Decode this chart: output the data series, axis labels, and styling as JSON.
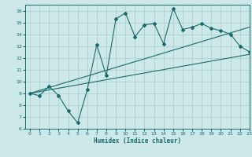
{
  "xlabel": "Humidex (Indice chaleur)",
  "ylabel": "",
  "xlim": [
    -0.5,
    23
  ],
  "ylim": [
    6,
    16.5
  ],
  "yticks": [
    6,
    7,
    8,
    9,
    10,
    11,
    12,
    13,
    14,
    15,
    16
  ],
  "xticks": [
    0,
    1,
    2,
    3,
    4,
    5,
    6,
    7,
    8,
    9,
    10,
    11,
    12,
    13,
    14,
    15,
    16,
    17,
    18,
    19,
    20,
    21,
    22,
    23
  ],
  "bg_color": "#cce8e8",
  "grid_color": "#aacccc",
  "line_color": "#1a6b6b",
  "main_x": [
    0,
    1,
    2,
    3,
    4,
    5,
    6,
    7,
    8,
    9,
    10,
    11,
    12,
    13,
    14,
    15,
    16,
    17,
    18,
    19,
    20,
    21,
    22,
    23
  ],
  "main_y": [
    9.0,
    8.8,
    9.6,
    8.8,
    7.5,
    6.5,
    9.3,
    13.1,
    10.5,
    15.3,
    15.8,
    13.8,
    14.8,
    14.9,
    13.2,
    16.2,
    14.4,
    14.6,
    14.9,
    14.5,
    14.3,
    14.0,
    13.0,
    12.5
  ],
  "line1_x": [
    0,
    23
  ],
  "line1_y": [
    9.0,
    12.3
  ],
  "line2_x": [
    0,
    23
  ],
  "line2_y": [
    9.0,
    14.6
  ]
}
